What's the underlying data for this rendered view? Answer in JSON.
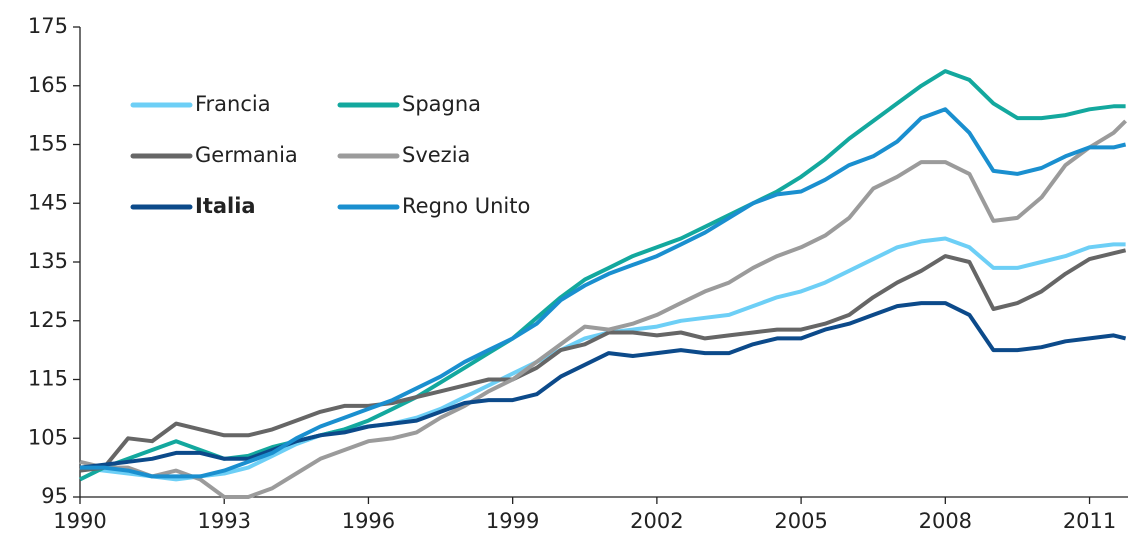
{
  "chart_data": {
    "type": "line",
    "x": [
      1990,
      1990.5,
      1991,
      1991.5,
      1992,
      1992.5,
      1993,
      1993.5,
      1994,
      1994.5,
      1995,
      1995.5,
      1996,
      1996.5,
      1997,
      1997.5,
      1998,
      1998.5,
      1999,
      1999.5,
      2000,
      2000.5,
      2001,
      2001.5,
      2002,
      2002.5,
      2003,
      2003.5,
      2004,
      2004.5,
      2005,
      2005.5,
      2006,
      2006.5,
      2007,
      2007.5,
      2008,
      2008.5,
      2009,
      2009.5,
      2010,
      2010.5,
      2011,
      2011.5,
      2011.75
    ],
    "series": [
      {
        "name": "Francia",
        "color": "#6dcff6",
        "values": [
          100,
          99.5,
          99,
          98.5,
          98,
          98.5,
          99,
          100,
          102,
          104,
          105.5,
          106.5,
          107,
          107.5,
          108.5,
          110,
          112,
          114,
          116,
          118,
          120,
          122,
          123,
          123.5,
          124,
          125,
          125.5,
          126,
          127.5,
          129,
          130,
          131.5,
          133.5,
          135.5,
          137.5,
          138.5,
          139,
          137.5,
          134,
          134,
          135,
          136,
          137.5,
          138,
          138
        ]
      },
      {
        "name": "Spagna",
        "color": "#13a89e",
        "values": [
          98,
          100,
          101.5,
          103,
          104.5,
          103,
          101.5,
          102,
          103.5,
          104.5,
          105.5,
          106.5,
          108,
          110,
          112,
          114.5,
          117,
          119.5,
          122,
          125.5,
          129,
          132,
          134,
          136,
          137.5,
          139,
          141,
          143,
          145,
          147,
          149.5,
          152.5,
          156,
          159,
          162,
          165,
          167.5,
          166,
          162,
          159.5,
          159.5,
          160,
          161,
          161.5,
          161.5
        ]
      },
      {
        "name": "Germania",
        "color": "#666666",
        "values": [
          99.5,
          100,
          105,
          104.5,
          107.5,
          106.5,
          105.5,
          105.5,
          106.5,
          108,
          109.5,
          110.5,
          110.5,
          111,
          112,
          113,
          114,
          115,
          115,
          117,
          120,
          121,
          123,
          123,
          122.5,
          123,
          122,
          122.5,
          123,
          123.5,
          123.5,
          124.5,
          126,
          129,
          131.5,
          133.5,
          136,
          135,
          127,
          128,
          130,
          133,
          135.5,
          136.5,
          137
        ]
      },
      {
        "name": "Svezia",
        "color": "#9b9b9b",
        "values": [
          101,
          100,
          100,
          98.5,
          99.5,
          98,
          95,
          95,
          96.5,
          99,
          101.5,
          103,
          104.5,
          105,
          106,
          108.5,
          110.5,
          113,
          115,
          118,
          121,
          124,
          123.5,
          124.5,
          126,
          128,
          130,
          131.5,
          134,
          136,
          137.5,
          139.5,
          142.5,
          147.5,
          149.5,
          152,
          152,
          150,
          142,
          142.5,
          146,
          151.5,
          154.5,
          157,
          159
        ]
      },
      {
        "name": "Italia",
        "color": "#0c4a8a",
        "bold": true,
        "values": [
          100,
          100.5,
          101,
          101.5,
          102.5,
          102.5,
          101.5,
          101.5,
          103,
          104.5,
          105.5,
          106,
          107,
          107.5,
          108,
          109.5,
          111,
          111.5,
          111.5,
          112.5,
          115.5,
          117.5,
          119.5,
          119,
          119.5,
          120,
          119.5,
          119.5,
          121,
          122,
          122,
          123.5,
          124.5,
          126,
          127.5,
          128,
          128,
          126,
          120,
          120,
          120.5,
          121.5,
          122,
          122.5,
          122
        ]
      },
      {
        "name": "Regno Unito",
        "color": "#1a8fcf",
        "values": [
          100,
          100,
          99.5,
          98.5,
          98.5,
          98.5,
          99.5,
          101,
          102.5,
          105,
          107,
          108.5,
          110,
          111.5,
          113.5,
          115.5,
          118,
          120,
          122,
          124.5,
          128.5,
          131,
          133,
          134.5,
          136,
          138,
          140,
          142.5,
          145,
          146.5,
          147,
          149,
          151.5,
          153,
          155.5,
          159.5,
          161,
          157,
          150.5,
          150,
          151,
          153,
          154.5,
          154.5,
          155
        ]
      }
    ],
    "xlim": [
      1990,
      2011.8
    ],
    "xticks": [
      1990,
      1993,
      1996,
      1999,
      2002,
      2005,
      2008,
      2011
    ],
    "ylim": [
      95,
      175
    ],
    "yticks": [
      95,
      105,
      115,
      125,
      135,
      145,
      155,
      165,
      175
    ],
    "grid": false,
    "legend": "upper-left"
  }
}
